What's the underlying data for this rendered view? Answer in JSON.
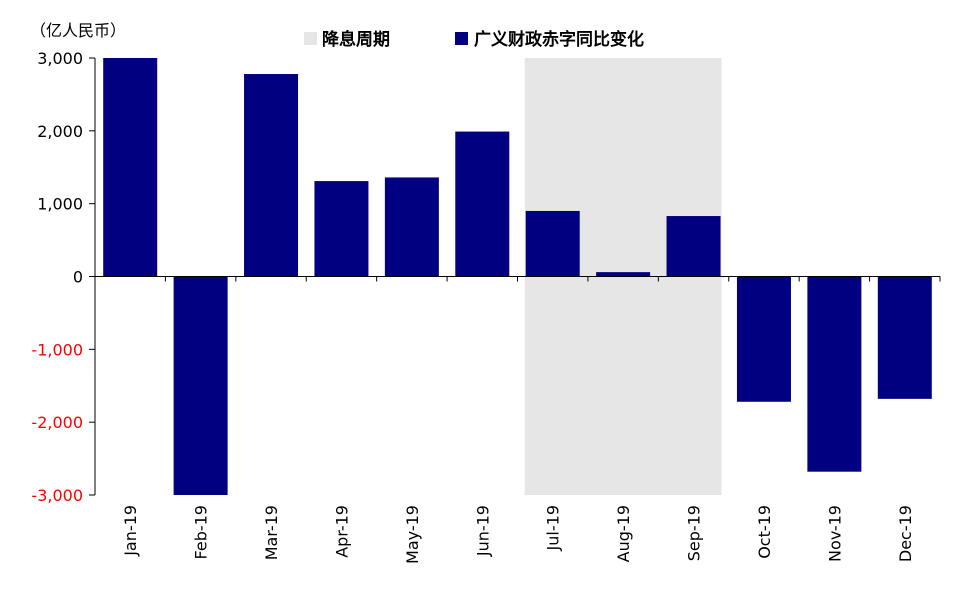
{
  "chart_data": {
    "type": "bar",
    "unit": "（亿人民币）",
    "categories": [
      "Jan-19",
      "Feb-19",
      "Mar-19",
      "Apr-19",
      "May-19",
      "Jun-19",
      "Jul-19",
      "Aug-19",
      "Sep-19",
      "Oct-19",
      "Nov-19",
      "Dec-19"
    ],
    "series": [
      {
        "name": "广义财政赤字同比变化",
        "color": "#000080",
        "values": [
          3000,
          -3020,
          2780,
          1310,
          1360,
          1990,
          900,
          60,
          830,
          -1720,
          -2680,
          -1680
        ]
      }
    ],
    "shaded_period": {
      "name": "降息周期",
      "from": "Jul-19",
      "to": "Sep-19",
      "color": "#e6e6e6"
    },
    "ylim": [
      -3000,
      3000
    ],
    "y_ticks": [
      {
        "value": 3000,
        "label": "3,000"
      },
      {
        "value": 2000,
        "label": "2,000"
      },
      {
        "value": 1000,
        "label": "1,000"
      },
      {
        "value": 0,
        "label": "0"
      },
      {
        "value": -1000,
        "label": "-1,000"
      },
      {
        "value": -2000,
        "label": "-2,000"
      },
      {
        "value": -3000,
        "label": "-3,000"
      }
    ],
    "negative_tick_color": "#ff0000",
    "grid": false,
    "legend_placement": "top"
  }
}
